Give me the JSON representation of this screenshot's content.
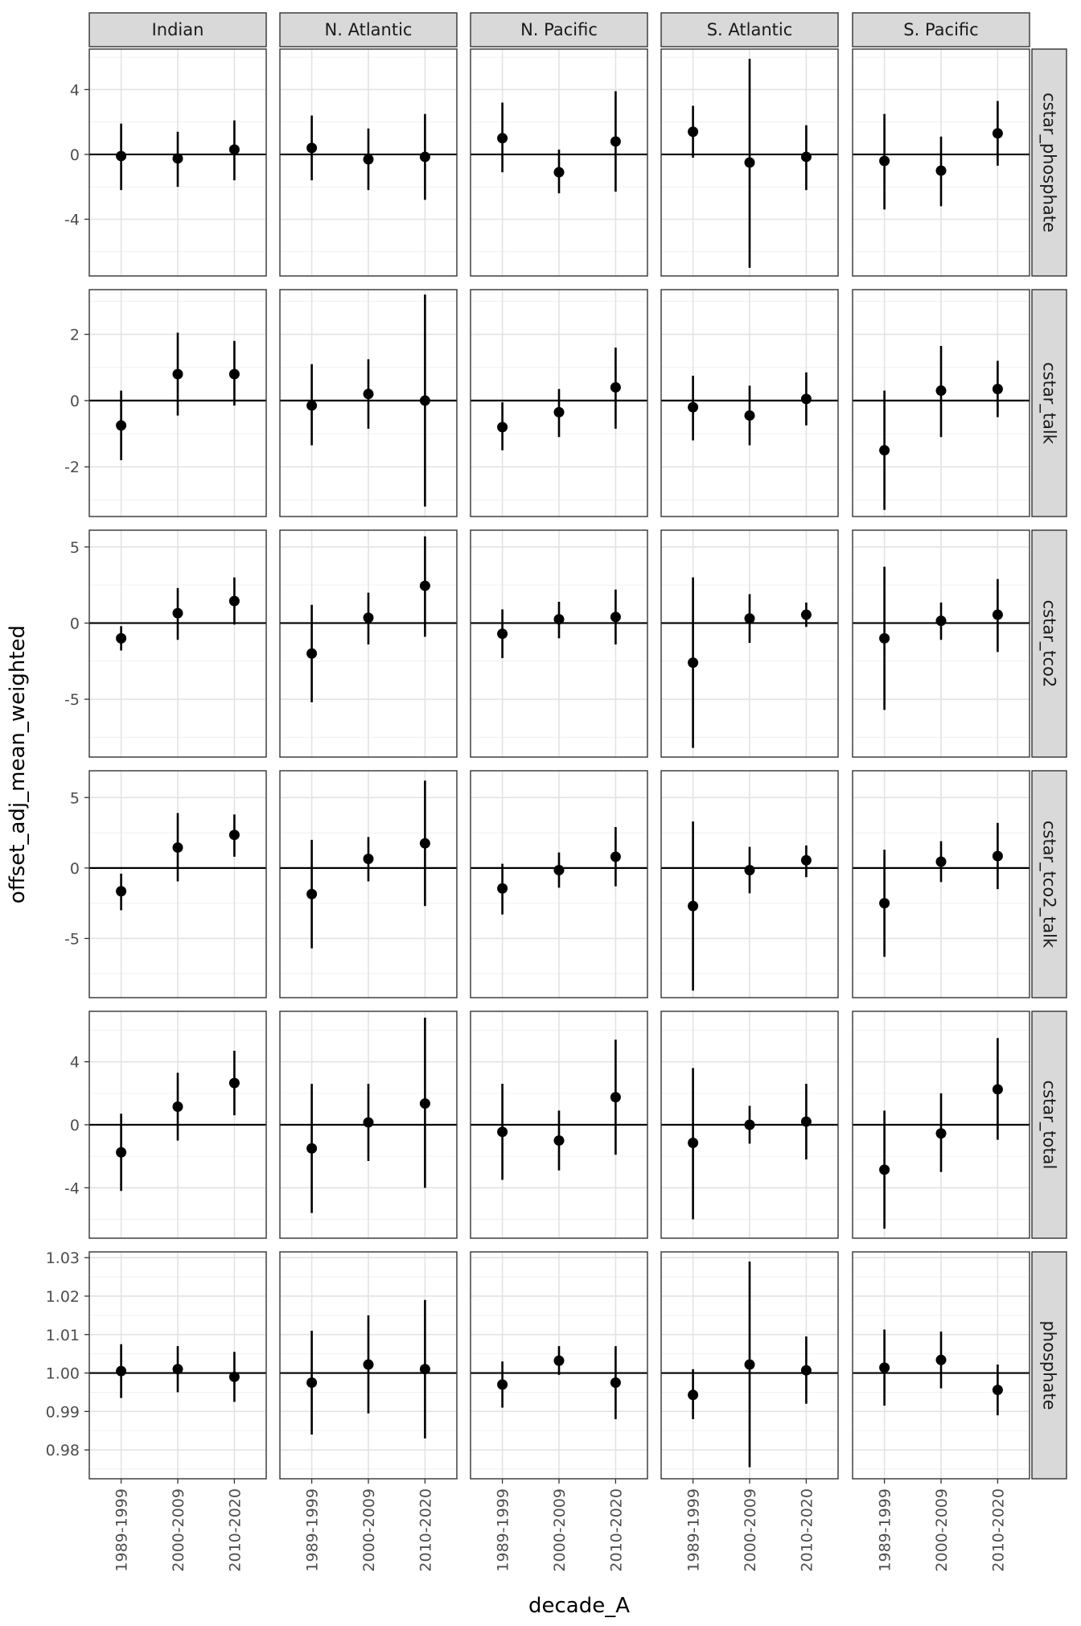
{
  "chart_data": {
    "type": "scatter",
    "title": "",
    "xlabel": "decade_A",
    "ylabel": "offset_adj_mean_weighted",
    "grid": true,
    "legend": "none",
    "reference_line": {
      "y_offset_vars": 0,
      "y_phosphate": 1.0
    },
    "x": [
      "1989-1999",
      "2000-2009",
      "2010-2020"
    ],
    "columns": [
      "Indian",
      "N. Atlantic",
      "N. Pacific",
      "S. Atlantic",
      "S. Pacific"
    ],
    "rows": [
      {
        "name": "cstar_phosphate",
        "ylim": [
          -7.5,
          6.5
        ],
        "ticks": [
          -4,
          0,
          4
        ],
        "tick_labels": [
          "-4",
          "0",
          "4"
        ],
        "panels": [
          [
            {
              "y": -0.1,
              "lo": -2.2,
              "hi": 1.9
            },
            {
              "y": -0.25,
              "lo": -2.0,
              "hi": 1.4
            },
            {
              "y": 0.3,
              "lo": -1.6,
              "hi": 2.1
            }
          ],
          [
            {
              "y": 0.4,
              "lo": -1.6,
              "hi": 2.4
            },
            {
              "y": -0.3,
              "lo": -2.2,
              "hi": 1.6
            },
            {
              "y": -0.15,
              "lo": -2.8,
              "hi": 2.5
            }
          ],
          [
            {
              "y": 1.0,
              "lo": -1.1,
              "hi": 3.2
            },
            {
              "y": -1.1,
              "lo": -2.4,
              "hi": 0.3
            },
            {
              "y": 0.8,
              "lo": -2.3,
              "hi": 3.9
            }
          ],
          [
            {
              "y": 1.4,
              "lo": -0.2,
              "hi": 3.0
            },
            {
              "y": -0.5,
              "lo": -7.0,
              "hi": 5.9
            },
            {
              "y": -0.15,
              "lo": -2.2,
              "hi": 1.8
            }
          ],
          [
            {
              "y": -0.4,
              "lo": -3.4,
              "hi": 2.5
            },
            {
              "y": -1.0,
              "lo": -3.2,
              "hi": 1.1
            },
            {
              "y": 1.3,
              "lo": -0.7,
              "hi": 3.3
            }
          ]
        ]
      },
      {
        "name": "cstar_talk",
        "ylim": [
          -3.5,
          3.35
        ],
        "ticks": [
          -2,
          0,
          2
        ],
        "tick_labels": [
          "-2",
          "0",
          "2"
        ],
        "panels": [
          [
            {
              "y": -0.75,
              "lo": -1.8,
              "hi": 0.3
            },
            {
              "y": 0.8,
              "lo": -0.45,
              "hi": 2.05
            },
            {
              "y": 0.8,
              "lo": -0.15,
              "hi": 1.8
            }
          ],
          [
            {
              "y": -0.15,
              "lo": -1.35,
              "hi": 1.1
            },
            {
              "y": 0.2,
              "lo": -0.85,
              "hi": 1.25
            },
            {
              "y": 0.0,
              "lo": -3.2,
              "hi": 3.2
            }
          ],
          [
            {
              "y": -0.8,
              "lo": -1.5,
              "hi": -0.05
            },
            {
              "y": -0.35,
              "lo": -1.1,
              "hi": 0.35
            },
            {
              "y": 0.4,
              "lo": -0.85,
              "hi": 1.6
            }
          ],
          [
            {
              "y": -0.2,
              "lo": -1.2,
              "hi": 0.75
            },
            {
              "y": -0.45,
              "lo": -1.35,
              "hi": 0.45
            },
            {
              "y": 0.05,
              "lo": -0.75,
              "hi": 0.85
            }
          ],
          [
            {
              "y": -1.5,
              "lo": -3.3,
              "hi": 0.3
            },
            {
              "y": 0.3,
              "lo": -1.1,
              "hi": 1.65
            },
            {
              "y": 0.35,
              "lo": -0.5,
              "hi": 1.2
            }
          ]
        ]
      },
      {
        "name": "cstar_tco2",
        "ylim": [
          -8.8,
          6.1
        ],
        "ticks": [
          -5,
          0,
          5
        ],
        "tick_labels": [
          "-5",
          "0",
          "5"
        ],
        "panels": [
          [
            {
              "y": -1.0,
              "lo": -1.8,
              "hi": -0.2
            },
            {
              "y": 0.65,
              "lo": -1.1,
              "hi": 2.3
            },
            {
              "y": 1.45,
              "lo": -0.1,
              "hi": 3.0
            }
          ],
          [
            {
              "y": -2.0,
              "lo": -5.2,
              "hi": 1.2
            },
            {
              "y": 0.35,
              "lo": -1.4,
              "hi": 2.0
            },
            {
              "y": 2.45,
              "lo": -0.9,
              "hi": 5.7
            }
          ],
          [
            {
              "y": -0.7,
              "lo": -2.3,
              "hi": 0.9
            },
            {
              "y": 0.25,
              "lo": -1.0,
              "hi": 1.4
            },
            {
              "y": 0.4,
              "lo": -1.4,
              "hi": 2.2
            }
          ],
          [
            {
              "y": -2.6,
              "lo": -8.2,
              "hi": 3.0
            },
            {
              "y": 0.3,
              "lo": -1.3,
              "hi": 1.9
            },
            {
              "y": 0.55,
              "lo": -0.25,
              "hi": 1.35
            }
          ],
          [
            {
              "y": -1.0,
              "lo": -5.7,
              "hi": 3.7
            },
            {
              "y": 0.15,
              "lo": -1.1,
              "hi": 1.35
            },
            {
              "y": 0.55,
              "lo": -1.9,
              "hi": 2.9
            }
          ]
        ]
      },
      {
        "name": "cstar_tco2_talk",
        "ylim": [
          -9.2,
          6.9
        ],
        "ticks": [
          -5,
          0,
          5
        ],
        "tick_labels": [
          "-5",
          "0",
          "5"
        ],
        "panels": [
          [
            {
              "y": -1.65,
              "lo": -3.0,
              "hi": -0.4
            },
            {
              "y": 1.45,
              "lo": -0.95,
              "hi": 3.9
            },
            {
              "y": 2.35,
              "lo": 0.8,
              "hi": 3.8
            }
          ],
          [
            {
              "y": -1.85,
              "lo": -5.7,
              "hi": 2.0
            },
            {
              "y": 0.65,
              "lo": -0.95,
              "hi": 2.2
            },
            {
              "y": 1.75,
              "lo": -2.7,
              "hi": 6.2
            }
          ],
          [
            {
              "y": -1.45,
              "lo": -3.3,
              "hi": 0.3
            },
            {
              "y": -0.15,
              "lo": -1.4,
              "hi": 1.1
            },
            {
              "y": 0.8,
              "lo": -1.3,
              "hi": 2.9
            }
          ],
          [
            {
              "y": -2.7,
              "lo": -8.7,
              "hi": 3.3
            },
            {
              "y": -0.15,
              "lo": -1.8,
              "hi": 1.5
            },
            {
              "y": 0.55,
              "lo": -0.65,
              "hi": 1.6
            }
          ],
          [
            {
              "y": -2.5,
              "lo": -6.3,
              "hi": 1.3
            },
            {
              "y": 0.45,
              "lo": -1.0,
              "hi": 1.9
            },
            {
              "y": 0.85,
              "lo": -1.5,
              "hi": 3.2
            }
          ]
        ]
      },
      {
        "name": "cstar_total",
        "ylim": [
          -7.2,
          7.2
        ],
        "ticks": [
          -4,
          0,
          4
        ],
        "tick_labels": [
          "-4",
          "0",
          "4"
        ],
        "panels": [
          [
            {
              "y": -1.75,
              "lo": -4.2,
              "hi": 0.7
            },
            {
              "y": 1.15,
              "lo": -1.0,
              "hi": 3.3
            },
            {
              "y": 2.65,
              "lo": 0.6,
              "hi": 4.7
            }
          ],
          [
            {
              "y": -1.5,
              "lo": -5.6,
              "hi": 2.6
            },
            {
              "y": 0.15,
              "lo": -2.3,
              "hi": 2.6
            },
            {
              "y": 1.35,
              "lo": -4.0,
              "hi": 6.8
            }
          ],
          [
            {
              "y": -0.45,
              "lo": -3.5,
              "hi": 2.6
            },
            {
              "y": -1.0,
              "lo": -2.9,
              "hi": 0.9
            },
            {
              "y": 1.75,
              "lo": -1.9,
              "hi": 5.4
            }
          ],
          [
            {
              "y": -1.15,
              "lo": -6.0,
              "hi": 3.6
            },
            {
              "y": 0.0,
              "lo": -1.2,
              "hi": 1.2
            },
            {
              "y": 0.2,
              "lo": -2.2,
              "hi": 2.6
            }
          ],
          [
            {
              "y": -2.85,
              "lo": -6.6,
              "hi": 0.9
            },
            {
              "y": -0.55,
              "lo": -3.0,
              "hi": 2.0
            },
            {
              "y": 2.25,
              "lo": -0.95,
              "hi": 5.5
            }
          ]
        ]
      },
      {
        "name": "phosphate",
        "ylim": [
          0.9725,
          1.0315
        ],
        "ticks": [
          0.98,
          0.99,
          1.0,
          1.01,
          1.02,
          1.03
        ],
        "tick_labels": [
          "0.98",
          "0.99",
          "1.00",
          "1.01",
          "1.02",
          "1.03"
        ],
        "panels": [
          [
            {
              "y": 1.0005,
              "lo": 0.9935,
              "hi": 1.0075
            },
            {
              "y": 1.001,
              "lo": 0.995,
              "hi": 1.007
            },
            {
              "y": 0.999,
              "lo": 0.9925,
              "hi": 1.0055
            }
          ],
          [
            {
              "y": 0.9975,
              "lo": 0.984,
              "hi": 1.011
            },
            {
              "y": 1.0022,
              "lo": 0.9895,
              "hi": 1.015
            },
            {
              "y": 1.001,
              "lo": 0.983,
              "hi": 1.019
            }
          ],
          [
            {
              "y": 0.997,
              "lo": 0.991,
              "hi": 1.003
            },
            {
              "y": 1.0032,
              "lo": 0.9995,
              "hi": 1.007
            },
            {
              "y": 0.9975,
              "lo": 0.988,
              "hi": 1.007
            }
          ],
          [
            {
              "y": 0.9943,
              "lo": 0.988,
              "hi": 1.001
            },
            {
              "y": 1.0022,
              "lo": 0.9755,
              "hi": 1.029
            },
            {
              "y": 1.0007,
              "lo": 0.992,
              "hi": 1.0095
            }
          ],
          [
            {
              "y": 1.0014,
              "lo": 0.9915,
              "hi": 1.0113
            },
            {
              "y": 1.0034,
              "lo": 0.996,
              "hi": 1.0108
            },
            {
              "y": 0.9956,
              "lo": 0.989,
              "hi": 1.0022
            }
          ]
        ]
      }
    ]
  }
}
